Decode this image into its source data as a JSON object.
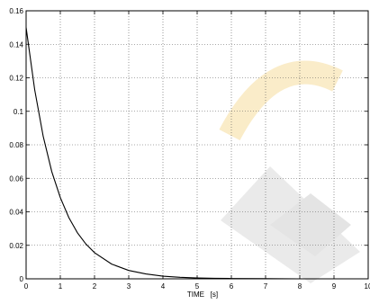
{
  "chart_data": {
    "type": "line",
    "title": "",
    "xlabel": "TIME   [s]",
    "ylabel": "",
    "xlim": [
      0,
      10
    ],
    "ylim": [
      0,
      0.16
    ],
    "x_ticks": [
      0,
      1,
      2,
      3,
      4,
      5,
      6,
      7,
      8,
      9,
      10
    ],
    "x_tick_labels": [
      "0",
      "1",
      "2",
      "3",
      "4",
      "5",
      "6",
      "7",
      "8",
      "9",
      "10"
    ],
    "y_ticks": [
      0,
      0.02,
      0.04,
      0.06,
      0.08,
      0.1,
      0.12,
      0.14,
      0.16
    ],
    "y_tick_labels": [
      "0",
      "0.02",
      "0.04",
      "0.06",
      "0.08",
      "0.1",
      "0.12",
      "0.14",
      "0.16"
    ],
    "grid": true,
    "series": [
      {
        "color": "#000000",
        "x": [
          0,
          0.25,
          0.5,
          0.75,
          1,
          1.25,
          1.5,
          1.75,
          2,
          2.5,
          3,
          3.5,
          4,
          4.5,
          5,
          5.5,
          6,
          7,
          8,
          9,
          10
        ],
        "y": [
          0.15,
          0.113,
          0.085,
          0.064,
          0.0485,
          0.0365,
          0.0275,
          0.0207,
          0.0156,
          0.0088,
          0.005,
          0.0029,
          0.0016,
          0.0009,
          0.0005,
          0.0003,
          0.0002,
          0.0001,
          0.0,
          0.0,
          0.0
        ]
      }
    ]
  }
}
